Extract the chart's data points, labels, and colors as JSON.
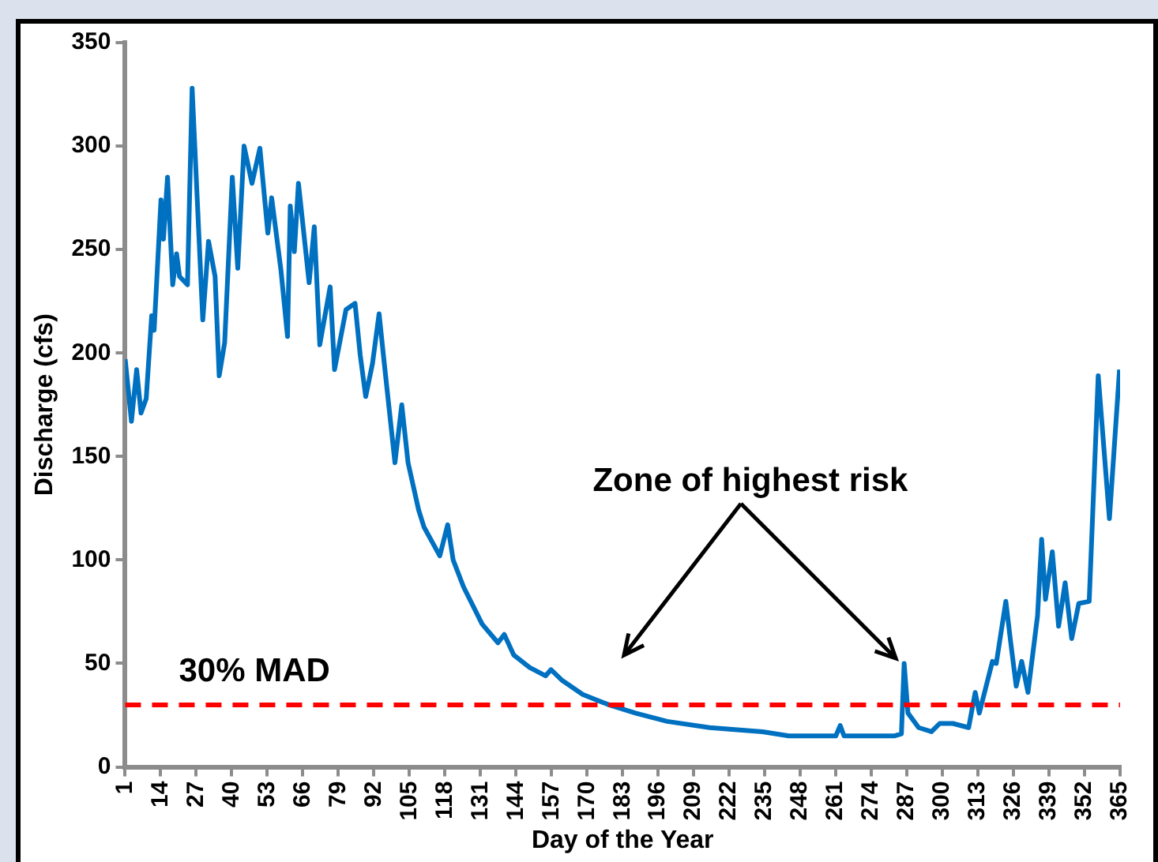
{
  "chart_data": {
    "type": "line",
    "xlabel": "Day of the Year",
    "ylabel": "Discharge (cfs)",
    "x": [
      1,
      3.3,
      5.2,
      6.8,
      8.7,
      10.7,
      11.6,
      14.1,
      15,
      16.5,
      18.4,
      19.8,
      20.9,
      23.8,
      25.5,
      29.4,
      31.5,
      33.9,
      35.4,
      37.4,
      40.2,
      42.2,
      44.5,
      47.4,
      50.3,
      53.2,
      54.6,
      58,
      60.4,
      61.4,
      62.9,
      64.4,
      68.3,
      70.2,
      72.2,
      76,
      77.6,
      81.8,
      85.1,
      87,
      89,
      91.5,
      93.9,
      95.8,
      99.7,
      102.2,
      104.5,
      108.4,
      110.3,
      116.1,
      119,
      121,
      124.8,
      131.6,
      137.4,
      139.7,
      143.2,
      149,
      154.8,
      156.8,
      160.7,
      168.4,
      178,
      187.7,
      199.3,
      214.8,
      224,
      234.2,
      243.8,
      261,
      262.6,
      264,
      282.6,
      285,
      286,
      287.4,
      291.3,
      296,
      299,
      303.8,
      309.6,
      312,
      313.5,
      318.3,
      319.7,
      323.2,
      325,
      327,
      329,
      331.3,
      334.8,
      336.3,
      337.7,
      340.2,
      342.5,
      344.9,
      347.3,
      349.9,
      353.7,
      357,
      361.1,
      364.8
    ],
    "series": [
      {
        "color": "#0070c0",
        "values": [
          197,
          167,
          192,
          171,
          178,
          218,
          211,
          274,
          255,
          285,
          233,
          248,
          237,
          233,
          328,
          216,
          254,
          237,
          189,
          205,
          285,
          241,
          300,
          282,
          299,
          258,
          275,
          240,
          208,
          271,
          249,
          282,
          234,
          261,
          204,
          232,
          192,
          221,
          224,
          199,
          179,
          195,
          219,
          195,
          147,
          175,
          147,
          124,
          116,
          102,
          117,
          100,
          87,
          69,
          60,
          64,
          54,
          48,
          44,
          47,
          42,
          35,
          30,
          26,
          22,
          19,
          18,
          17,
          15,
          15,
          20,
          15,
          15,
          16,
          50,
          26,
          19,
          17,
          21,
          21,
          19,
          36,
          26,
          51,
          50,
          80,
          60,
          39,
          51,
          36,
          73,
          110,
          81,
          104,
          68,
          89,
          62,
          79,
          80,
          189,
          120,
          192
        ]
      }
    ],
    "xlim": [
      1,
      365
    ],
    "xticks": [
      1,
      14,
      27,
      40,
      53,
      66,
      79,
      92,
      105,
      118,
      131,
      144,
      157,
      170,
      183,
      196,
      209,
      222,
      235,
      248,
      261,
      274,
      287,
      300,
      313,
      326,
      339,
      352,
      365
    ],
    "ylim": [
      0,
      350
    ],
    "yticks": [
      0,
      50,
      100,
      150,
      200,
      250,
      300,
      350
    ],
    "grid": false,
    "legend": false,
    "ref_lines": [
      {
        "axis": "y",
        "value": 30,
        "label": "30% MAD",
        "color": "#ff0000",
        "line_style": "dashed"
      }
    ],
    "annotations": [
      "Zone of highest risk"
    ]
  }
}
